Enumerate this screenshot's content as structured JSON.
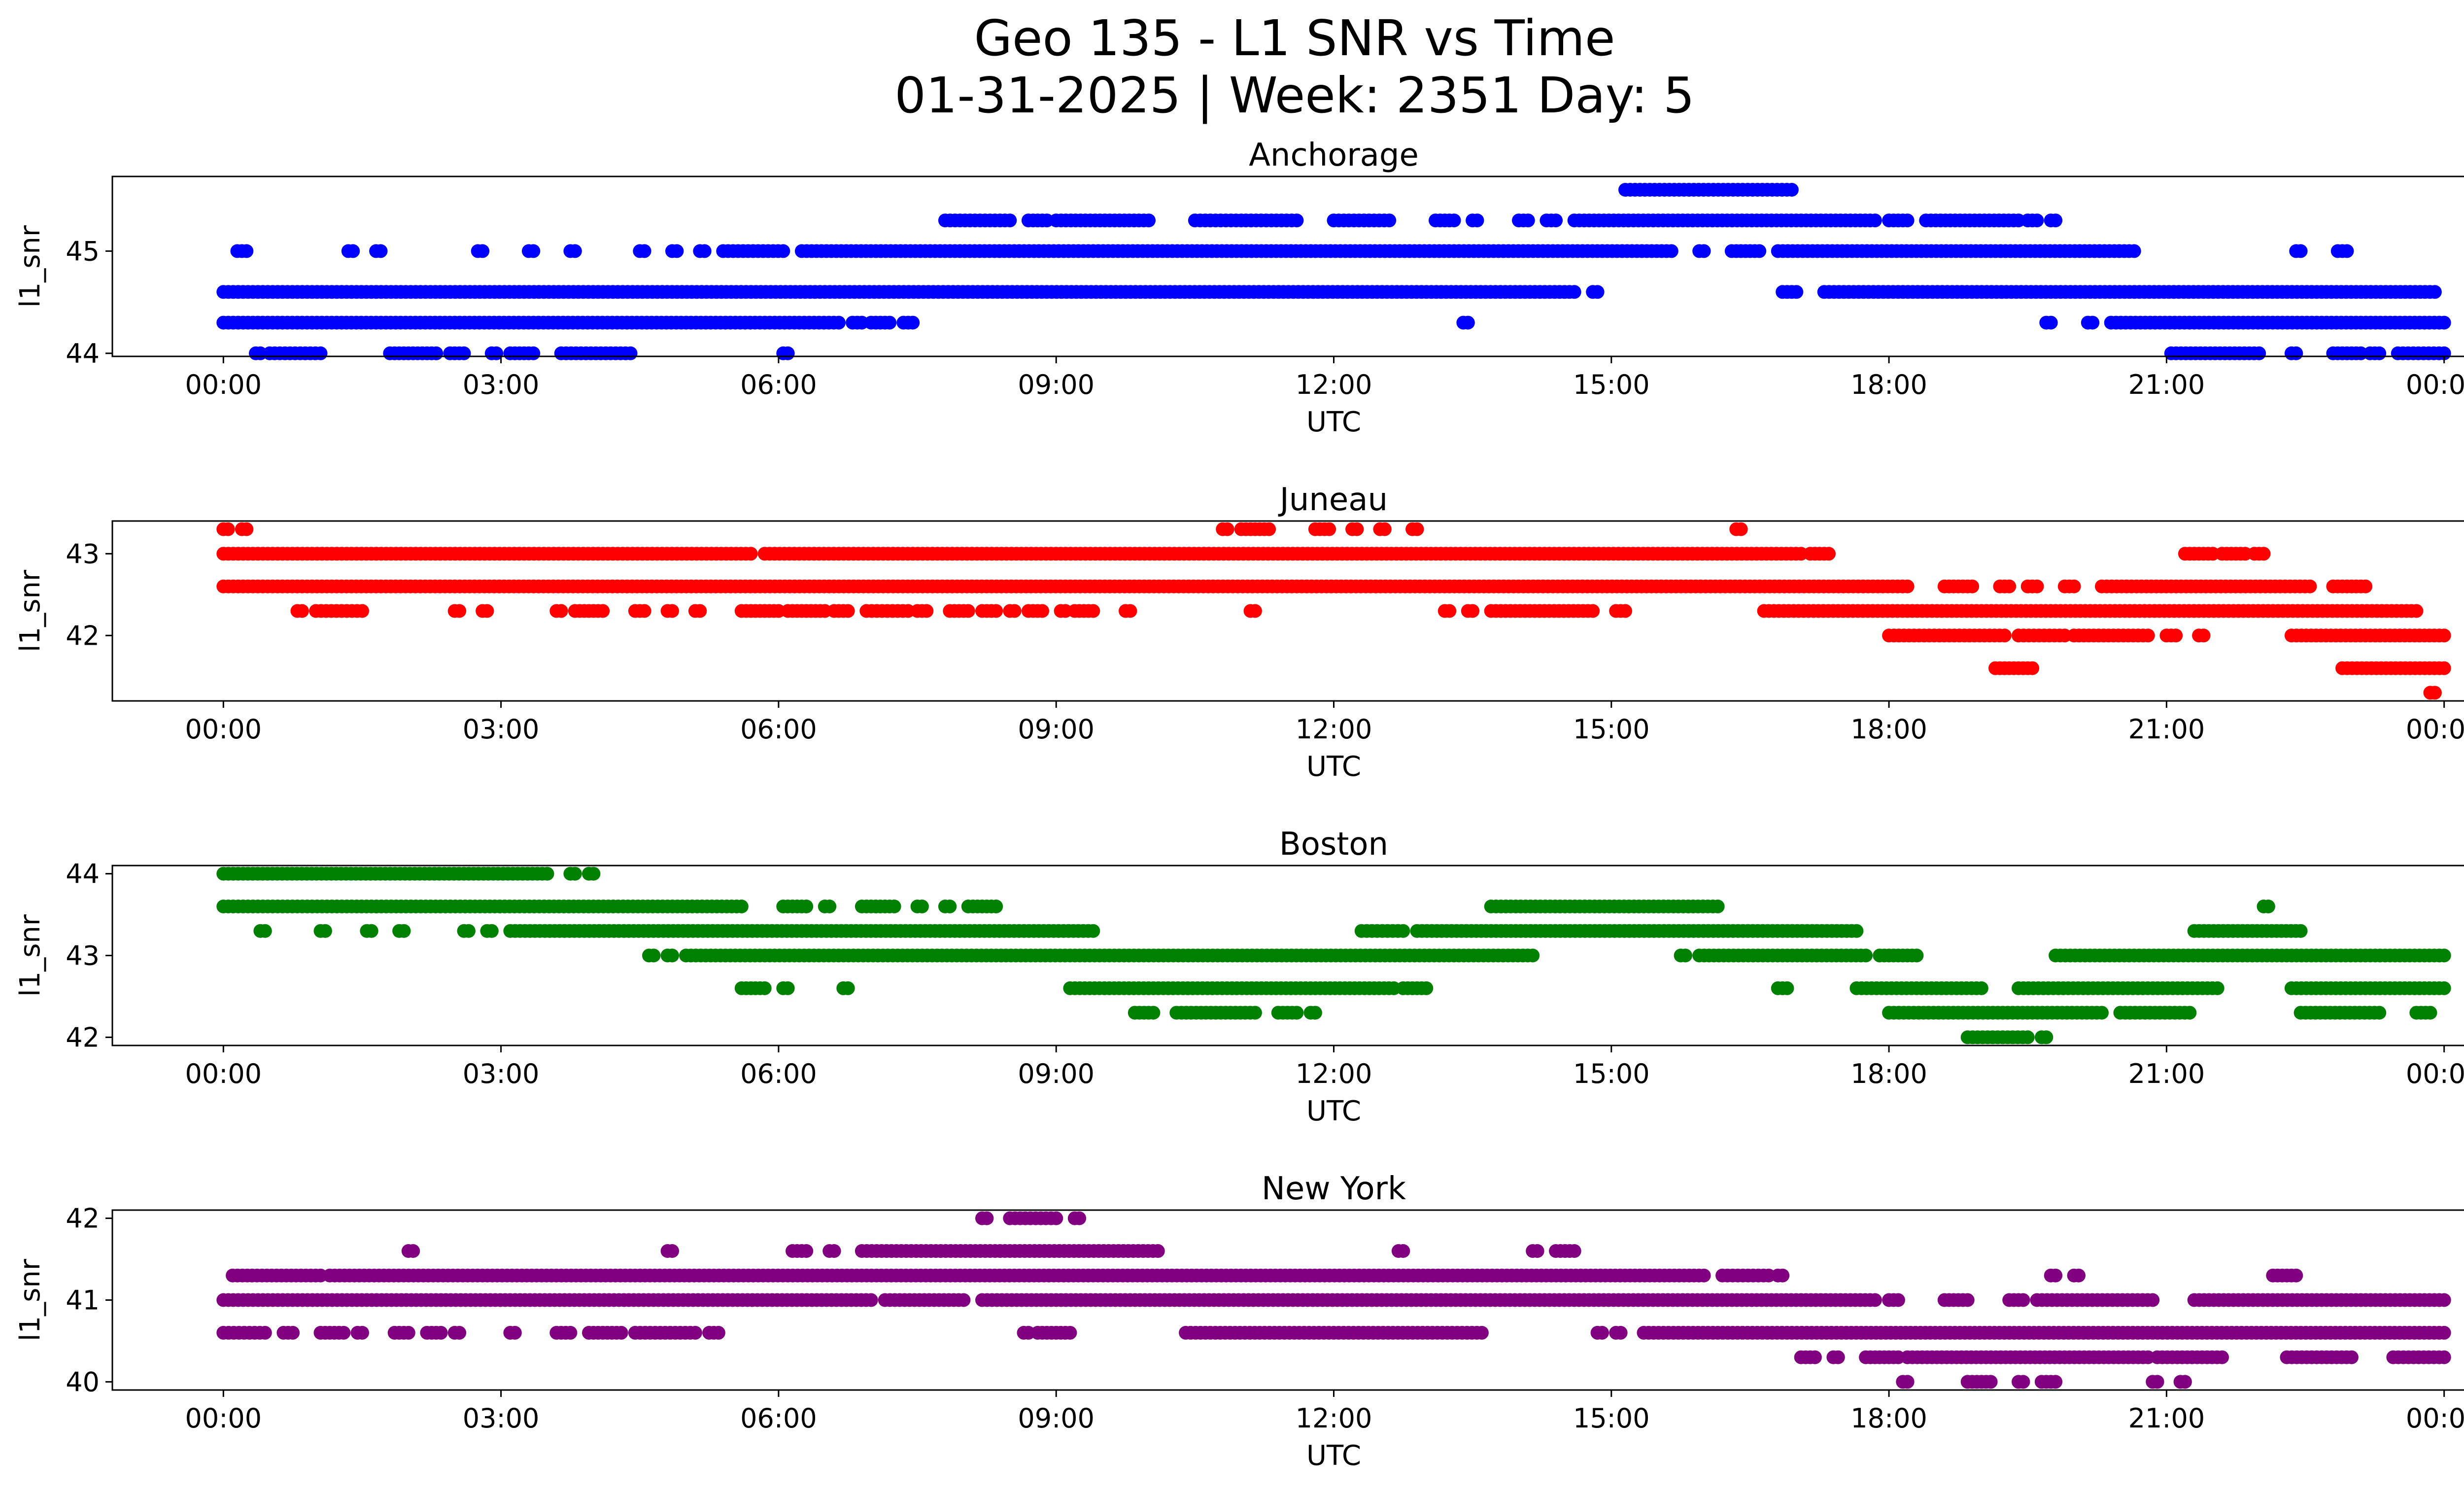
{
  "figure": {
    "title_line1": "Geo 135 - L1 SNR vs Time",
    "title_line2": "01-31-2025 | Week: 2351 Day: 5"
  },
  "chart_data": [
    {
      "type": "scatter",
      "title": "Anchorage",
      "xlabel": "UTC",
      "ylabel": "l1_snr",
      "color": "#0000ff",
      "xticks": [
        "00:00",
        "03:00",
        "06:00",
        "09:00",
        "12:00",
        "15:00",
        "18:00",
        "21:00",
        "00:00"
      ],
      "yticks": [
        44,
        45
      ],
      "xlim": [
        -1.2,
        25.2
      ],
      "ylim": [
        43.97,
        45.73
      ],
      "series": [
        {
          "y": 45.6,
          "segments": [
            [
              15.15,
              16.95
            ]
          ]
        },
        {
          "y": 45.3,
          "segments": [
            [
              7.8,
              8.5
            ],
            [
              8.7,
              8.9
            ],
            [
              9.0,
              10.0
            ],
            [
              10.5,
              11.0
            ],
            [
              11.05,
              11.6
            ],
            [
              12.0,
              12.6
            ],
            [
              13.1,
              13.3
            ],
            [
              13.5,
              13.55
            ],
            [
              14.0,
              14.1
            ],
            [
              14.3,
              14.4
            ],
            [
              14.6,
              17.85
            ],
            [
              18.0,
              18.2
            ],
            [
              18.4,
              19.4
            ],
            [
              19.5,
              19.6
            ],
            [
              19.75,
              19.8
            ]
          ]
        },
        {
          "y": 45.0,
          "segments": [
            [
              0.15,
              0.25
            ],
            [
              1.35,
              1.4
            ],
            [
              1.65,
              1.7
            ],
            [
              2.75,
              2.8
            ],
            [
              3.3,
              3.35
            ],
            [
              3.75,
              3.8
            ],
            [
              4.5,
              4.55
            ],
            [
              4.85,
              4.9
            ],
            [
              5.15,
              5.2
            ],
            [
              5.4,
              6.05
            ],
            [
              6.25,
              15.65
            ],
            [
              15.95,
              16.0
            ],
            [
              16.3,
              16.6
            ],
            [
              16.8,
              20.65
            ],
            [
              22.4,
              22.45
            ],
            [
              22.85,
              22.95
            ]
          ]
        },
        {
          "y": 44.6,
          "segments": [
            [
              0.0,
              14.6
            ],
            [
              14.8,
              14.85
            ],
            [
              16.85,
              17.0
            ],
            [
              17.3,
              23.9
            ]
          ]
        },
        {
          "y": 44.3,
          "segments": [
            [
              0.0,
              6.65
            ],
            [
              6.8,
              6.9
            ],
            [
              7.0,
              7.2
            ],
            [
              7.35,
              7.45
            ],
            [
              13.4,
              13.45
            ],
            [
              19.7,
              19.75
            ],
            [
              20.15,
              20.2
            ],
            [
              20.4,
              24.0
            ]
          ]
        },
        {
          "y": 44.0,
          "segments": [
            [
              0.35,
              0.4
            ],
            [
              0.5,
              1.05
            ],
            [
              1.8,
              1.85
            ],
            [
              1.9,
              2.3
            ],
            [
              2.45,
              2.6
            ],
            [
              2.9,
              2.95
            ],
            [
              3.1,
              3.35
            ],
            [
              3.65,
              4.4
            ],
            [
              6.05,
              6.1
            ],
            [
              21.05,
              22.0
            ],
            [
              22.35,
              22.4
            ],
            [
              22.8,
              23.1
            ],
            [
              23.2,
              23.3
            ],
            [
              23.5,
              24.0
            ]
          ]
        }
      ]
    },
    {
      "type": "scatter",
      "title": "Juneau",
      "xlabel": "UTC",
      "ylabel": "l1_snr",
      "color": "#ff0000",
      "xticks": [
        "00:00",
        "03:00",
        "06:00",
        "09:00",
        "12:00",
        "15:00",
        "18:00",
        "21:00",
        "00:00"
      ],
      "yticks": [
        42,
        43
      ],
      "xlim": [
        -1.2,
        25.2
      ],
      "ylim": [
        41.2,
        43.4
      ],
      "series": [
        {
          "y": 43.3,
          "segments": [
            [
              0.0,
              0.05
            ],
            [
              0.2,
              0.25
            ],
            [
              10.8,
              10.85
            ],
            [
              11.0,
              11.3
            ],
            [
              11.8,
              11.95
            ],
            [
              12.2,
              12.25
            ],
            [
              12.5,
              12.55
            ],
            [
              12.85,
              12.9
            ],
            [
              16.35,
              16.4
            ]
          ]
        },
        {
          "y": 43.0,
          "segments": [
            [
              0.0,
              5.7
            ],
            [
              5.85,
              17.05
            ],
            [
              17.15,
              17.35
            ],
            [
              21.2,
              21.5
            ],
            [
              21.6,
              21.85
            ],
            [
              21.95,
              22.05
            ]
          ]
        },
        {
          "y": 42.6,
          "segments": [
            [
              0.0,
              18.2
            ],
            [
              18.6,
              18.9
            ],
            [
              19.2,
              19.3
            ],
            [
              19.5,
              19.6
            ],
            [
              19.9,
              20.0
            ],
            [
              20.3,
              22.55
            ],
            [
              22.8,
              23.15
            ]
          ]
        },
        {
          "y": 42.3,
          "segments": [
            [
              0.8,
              0.85
            ],
            [
              1.0,
              1.5
            ],
            [
              2.5,
              2.55
            ],
            [
              2.8,
              2.85
            ],
            [
              3.6,
              3.65
            ],
            [
              3.8,
              4.1
            ],
            [
              4.45,
              4.55
            ],
            [
              4.8,
              4.85
            ],
            [
              5.1,
              5.15
            ],
            [
              5.6,
              6.0
            ],
            [
              6.1,
              6.5
            ],
            [
              6.6,
              6.75
            ],
            [
              6.95,
              7.4
            ],
            [
              7.5,
              7.6
            ],
            [
              7.85,
              8.05
            ],
            [
              8.2,
              8.35
            ],
            [
              8.5,
              8.55
            ],
            [
              8.7,
              8.85
            ],
            [
              9.05,
              9.1
            ],
            [
              9.2,
              9.4
            ],
            [
              9.75,
              9.8
            ],
            [
              11.1,
              11.15
            ],
            [
              13.2,
              13.25
            ],
            [
              13.45,
              13.5
            ],
            [
              13.7,
              14.8
            ],
            [
              15.05,
              15.15
            ],
            [
              16.65,
              23.7
            ]
          ]
        },
        {
          "y": 42.0,
          "segments": [
            [
              18.0,
              19.25
            ],
            [
              19.4,
              19.9
            ],
            [
              20.0,
              20.8
            ],
            [
              21.0,
              21.1
            ],
            [
              21.35,
              21.4
            ],
            [
              22.35,
              24.0
            ]
          ]
        },
        {
          "y": 41.6,
          "segments": [
            [
              19.15,
              19.55
            ],
            [
              22.9,
              24.0
            ]
          ]
        },
        {
          "y": 41.3,
          "segments": [
            [
              23.85,
              23.9
            ]
          ]
        }
      ]
    },
    {
      "type": "scatter",
      "title": "Boston",
      "xlabel": "UTC",
      "ylabel": "l1_snr",
      "color": "#008000",
      "xticks": [
        "00:00",
        "03:00",
        "06:00",
        "09:00",
        "12:00",
        "15:00",
        "18:00",
        "21:00",
        "00:00"
      ],
      "yticks": [
        42,
        43,
        44
      ],
      "xlim": [
        -1.2,
        25.2
      ],
      "ylim": [
        41.9,
        44.1
      ],
      "series": [
        {
          "y": 44.0,
          "segments": [
            [
              0.0,
              3.5
            ],
            [
              3.75,
              3.8
            ],
            [
              3.95,
              4.0
            ]
          ]
        },
        {
          "y": 43.6,
          "segments": [
            [
              0.0,
              5.6
            ],
            [
              6.05,
              6.3
            ],
            [
              6.5,
              6.55
            ],
            [
              6.9,
              7.25
            ],
            [
              7.5,
              7.55
            ],
            [
              7.8,
              7.85
            ],
            [
              8.05,
              8.35
            ],
            [
              13.7,
              16.15
            ]
          ]
        },
        {
          "y": 43.3,
          "segments": [
            [
              0.4,
              0.45
            ],
            [
              1.05,
              1.1
            ],
            [
              1.55,
              1.6
            ],
            [
              1.9,
              1.95
            ],
            [
              2.6,
              2.65
            ],
            [
              2.85,
              2.9
            ],
            [
              3.1,
              9.4
            ],
            [
              12.3,
              12.75
            ],
            [
              12.9,
              17.65
            ],
            [
              21.3,
              22.45
            ]
          ]
        },
        {
          "y": 43.0,
          "segments": [
            [
              4.6,
              4.65
            ],
            [
              4.8,
              4.85
            ],
            [
              5.0,
              14.15
            ],
            [
              15.75,
              15.8
            ],
            [
              15.95,
              17.75
            ],
            [
              17.9,
              18.3
            ],
            [
              19.8,
              24.0
            ]
          ]
        },
        {
          "y": 42.6,
          "segments": [
            [
              5.6,
              5.85
            ],
            [
              6.05,
              6.1
            ],
            [
              6.7,
              6.75
            ],
            [
              9.15,
              12.65
            ],
            [
              12.75,
              13.0
            ],
            [
              16.8,
              16.9
            ],
            [
              17.65,
              19.0
            ],
            [
              19.4,
              21.55
            ],
            [
              22.35,
              24.0
            ]
          ]
        },
        {
          "y": 42.3,
          "segments": [
            [
              9.85,
              10.05
            ],
            [
              10.3,
              11.15
            ],
            [
              11.4,
              11.6
            ],
            [
              11.75,
              11.8
            ],
            [
              18.0,
              20.3
            ],
            [
              20.5,
              21.25
            ],
            [
              22.45,
              23.3
            ],
            [
              23.7,
              23.85
            ]
          ]
        },
        {
          "y": 42.0,
          "segments": [
            [
              18.85,
              19.5
            ],
            [
              19.65,
              19.7
            ]
          ]
        },
        {
          "y": 43.6,
          "segments": [
            [
              22.05,
              22.1
            ]
          ]
        }
      ]
    },
    {
      "type": "scatter",
      "title": "New York",
      "xlabel": "UTC",
      "ylabel": "l1_snr",
      "color": "#800080",
      "xticks": [
        "00:00",
        "03:00",
        "06:00",
        "09:00",
        "12:00",
        "15:00",
        "18:00",
        "21:00",
        "00:00"
      ],
      "yticks": [
        40,
        41,
        42
      ],
      "xlim": [
        -1.2,
        25.2
      ],
      "ylim": [
        39.9,
        42.1
      ],
      "series": [
        {
          "y": 42.0,
          "segments": [
            [
              8.2,
              8.25
            ],
            [
              8.5,
              9.0
            ],
            [
              9.2,
              9.25
            ]
          ]
        },
        {
          "y": 41.6,
          "segments": [
            [
              2.0,
              2.05
            ],
            [
              4.8,
              4.85
            ],
            [
              6.15,
              6.3
            ],
            [
              6.55,
              6.6
            ],
            [
              6.9,
              10.1
            ],
            [
              12.7,
              12.75
            ],
            [
              14.15,
              14.2
            ],
            [
              14.4,
              14.6
            ]
          ]
        },
        {
          "y": 41.3,
          "segments": [
            [
              0.1,
              1.05
            ],
            [
              1.15,
              16.0
            ],
            [
              16.2,
              16.7
            ],
            [
              16.8,
              16.85
            ],
            [
              19.75,
              19.8
            ],
            [
              20.0,
              20.05
            ],
            [
              22.15,
              22.4
            ]
          ]
        },
        {
          "y": 41.0,
          "segments": [
            [
              0.0,
              7.0
            ],
            [
              7.15,
              8.0
            ],
            [
              8.2,
              17.85
            ],
            [
              18.0,
              18.1
            ],
            [
              18.6,
              18.85
            ],
            [
              19.3,
              19.45
            ],
            [
              19.6,
              20.85
            ],
            [
              21.3,
              24.0
            ]
          ]
        },
        {
          "y": 40.6,
          "segments": [
            [
              0.0,
              0.45
            ],
            [
              0.65,
              0.75
            ],
            [
              1.05,
              1.3
            ],
            [
              1.45,
              1.5
            ],
            [
              1.85,
              2.0
            ],
            [
              2.2,
              2.35
            ],
            [
              2.5,
              2.55
            ],
            [
              3.1,
              3.15
            ],
            [
              3.6,
              3.75
            ],
            [
              3.95,
              4.3
            ],
            [
              4.45,
              5.1
            ],
            [
              5.25,
              5.35
            ],
            [
              8.65,
              8.7
            ],
            [
              8.8,
              9.15
            ],
            [
              10.4,
              13.6
            ],
            [
              14.85,
              14.9
            ],
            [
              15.05,
              15.1
            ],
            [
              15.35,
              24.0
            ]
          ]
        },
        {
          "y": 40.3,
          "segments": [
            [
              17.05,
              17.2
            ],
            [
              17.4,
              17.45
            ],
            [
              17.75,
              18.1
            ],
            [
              18.2,
              20.8
            ],
            [
              20.9,
              21.6
            ],
            [
              22.3,
              23.0
            ],
            [
              23.45,
              24.0
            ]
          ]
        },
        {
          "y": 40.0,
          "segments": [
            [
              18.15,
              18.2
            ],
            [
              18.85,
              19.1
            ],
            [
              19.4,
              19.45
            ],
            [
              19.65,
              19.8
            ],
            [
              20.85,
              20.9
            ],
            [
              21.15,
              21.2
            ]
          ]
        }
      ]
    }
  ]
}
